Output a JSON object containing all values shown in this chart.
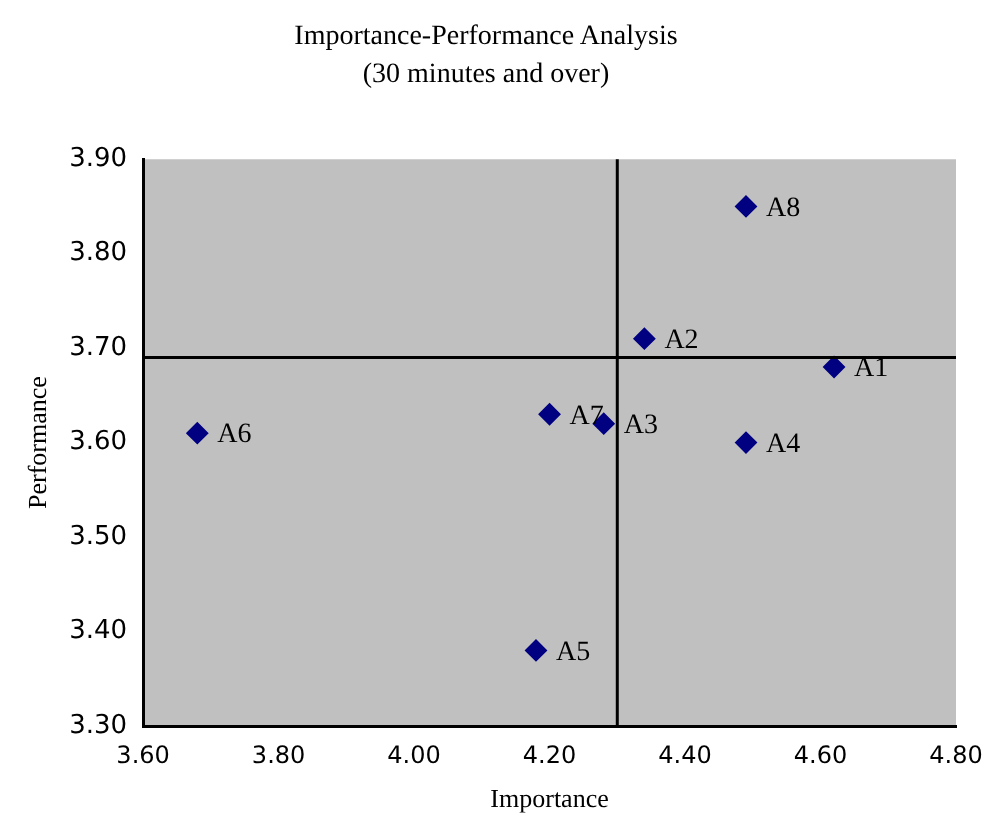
{
  "chart_data": {
    "type": "scatter",
    "title": "Importance-Performance Analysis",
    "subtitle": "(30 minutes and over)",
    "xlabel": "Importance",
    "ylabel": "Performance",
    "x": [
      4.62,
      4.34,
      4.28,
      4.49,
      4.18,
      3.68,
      4.2,
      4.49
    ],
    "series": [
      {
        "color": "#000080",
        "values": [
          3.68,
          3.71,
          3.62,
          3.6,
          3.38,
          3.61,
          3.63,
          3.85
        ]
      }
    ],
    "annotations": [
      {
        "text": "A1",
        "x": 4.62,
        "y": 3.68
      },
      {
        "text": "A2",
        "x": 4.34,
        "y": 3.71
      },
      {
        "text": "A3",
        "x": 4.28,
        "y": 3.62
      },
      {
        "text": "A4",
        "x": 4.49,
        "y": 3.6
      },
      {
        "text": "A5",
        "x": 4.18,
        "y": 3.38
      },
      {
        "text": "A6",
        "x": 3.68,
        "y": 3.61
      },
      {
        "text": "A7",
        "x": 4.2,
        "y": 3.63
      },
      {
        "text": "A8",
        "x": 4.49,
        "y": 3.85
      }
    ],
    "ref_lines": [
      {
        "axis": "x",
        "value": 4.3
      },
      {
        "axis": "y",
        "value": 3.69
      }
    ],
    "xlim": [
      3.6,
      4.8
    ],
    "xticks": [
      {
        "value": 3.6,
        "label": "3.60"
      },
      {
        "value": 3.8,
        "label": "3.80"
      },
      {
        "value": 4.0,
        "label": "4.00"
      },
      {
        "value": 4.2,
        "label": "4.20"
      },
      {
        "value": 4.4,
        "label": "4.40"
      },
      {
        "value": 4.6,
        "label": "4.60"
      },
      {
        "value": 4.8,
        "label": "4.80"
      }
    ],
    "ylim": [
      3.3,
      3.9
    ],
    "yticks": [
      {
        "value": 3.3,
        "label": "3.30"
      },
      {
        "value": 3.4,
        "label": "3.40"
      },
      {
        "value": 3.5,
        "label": "3.50"
      },
      {
        "value": 3.6,
        "label": "3.60"
      },
      {
        "value": 3.7,
        "label": "3.70"
      },
      {
        "value": 3.8,
        "label": "3.80"
      },
      {
        "value": 3.9,
        "label": "3.90"
      }
    ],
    "grid": false,
    "legend": false,
    "marker": "diamond"
  }
}
